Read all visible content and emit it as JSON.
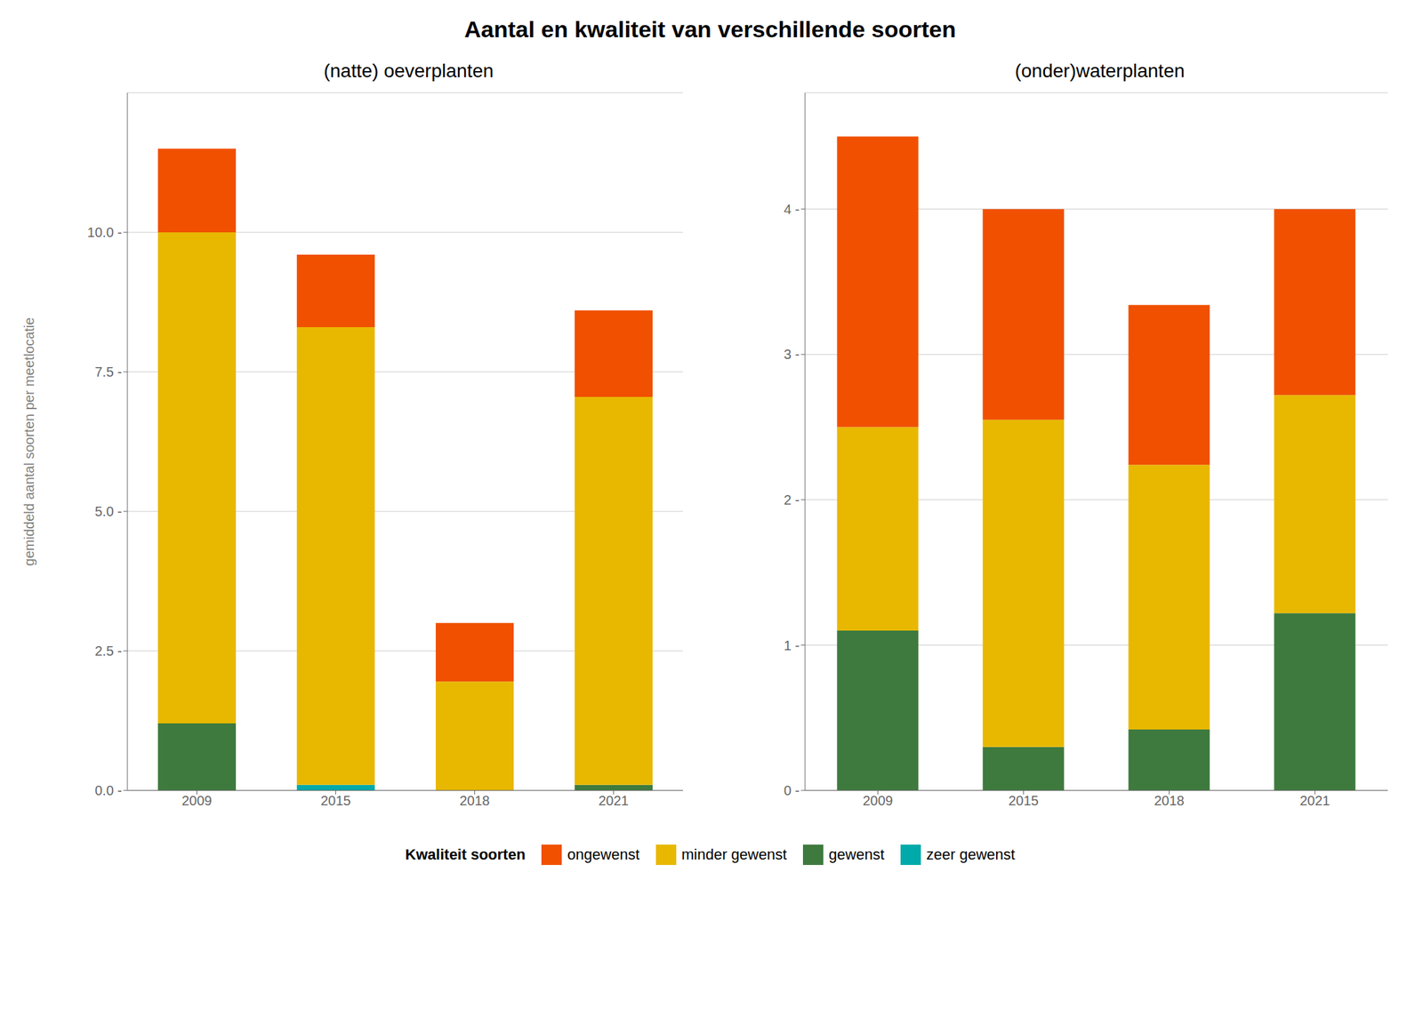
{
  "chart_data": [
    {
      "type": "bar",
      "title": "Aantal en kwaliteit van verschillende soorten",
      "subtitle": "(natte) oeverplanten",
      "ylabel": "gemiddeld aantal soorten per meetlocatie",
      "categories": [
        "2009",
        "2015",
        "2018",
        "2021"
      ],
      "stacked": true,
      "grid": true,
      "legend": "bottom",
      "legend_title": "Kwaliteit soorten",
      "series": [
        {
          "name": "zeer gewenst",
          "color": "#00AAAA",
          "values": [
            0.0,
            0.1,
            0.0,
            0.0
          ]
        },
        {
          "name": "gewenst",
          "color": "#3E7A3E",
          "values": [
            1.2,
            0.0,
            0.0,
            0.1
          ]
        },
        {
          "name": "minder gewenst",
          "color": "#E8B800",
          "values": [
            8.8,
            8.2,
            1.95,
            6.95
          ]
        },
        {
          "name": "ongewenst",
          "color": "#F05000",
          "values": [
            1.5,
            1.3,
            1.05,
            1.55
          ]
        }
      ],
      "ylim": [
        0,
        12.5
      ],
      "yticks": [
        {
          "value": 0.0,
          "label": "0.0 -"
        },
        {
          "value": 2.5,
          "label": "2.5 -"
        },
        {
          "value": 5.0,
          "label": "5.0 -"
        },
        {
          "value": 7.5,
          "label": "7.5 -"
        },
        {
          "value": 10.0,
          "label": "10.0 -"
        }
      ]
    },
    {
      "type": "bar",
      "subtitle": "(onder)waterplanten",
      "categories": [
        "2009",
        "2015",
        "2018",
        "2021"
      ],
      "stacked": true,
      "grid": true,
      "series": [
        {
          "name": "zeer gewenst",
          "color": "#00AAAA",
          "values": [
            0.0,
            0.0,
            0.0,
            0.0
          ]
        },
        {
          "name": "gewenst",
          "color": "#3E7A3E",
          "values": [
            1.1,
            0.3,
            0.42,
            1.22
          ]
        },
        {
          "name": "minder gewenst",
          "color": "#E8B800",
          "values": [
            1.4,
            2.25,
            1.82,
            1.5
          ]
        },
        {
          "name": "ongewenst",
          "color": "#F05000",
          "values": [
            2.0,
            1.45,
            1.1,
            1.28
          ]
        }
      ],
      "ylim": [
        0,
        4.8
      ],
      "yticks": [
        {
          "value": 0,
          "label": "0 -"
        },
        {
          "value": 1,
          "label": "1 -"
        },
        {
          "value": 2,
          "label": "2 -"
        },
        {
          "value": 3,
          "label": "3 -"
        },
        {
          "value": 4,
          "label": "4 -"
        }
      ]
    }
  ]
}
